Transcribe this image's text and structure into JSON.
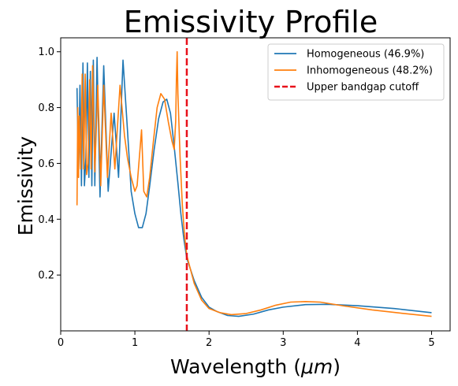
{
  "chart_data": {
    "type": "line",
    "title": "Emissivity Profile",
    "xlabel_prefix": "Wavelength (",
    "xlabel_unit": "μm",
    "xlabel_suffix": ")",
    "ylabel": "Emissivity",
    "xlim": [
      0,
      5.25
    ],
    "ylim": [
      0.0,
      1.05
    ],
    "x_ticks": [
      0,
      1,
      2,
      3,
      4,
      5
    ],
    "x_tick_labels": [
      "0",
      "1",
      "2",
      "3",
      "4",
      "5"
    ],
    "y_ticks": [
      0.2,
      0.4,
      0.6,
      0.8,
      1.0
    ],
    "y_tick_labels": [
      "0.2",
      "0.4",
      "0.6",
      "0.8",
      "1.0"
    ],
    "grid": false,
    "legend_position": "top-right",
    "series": [
      {
        "name": "Homogeneous (46.9%)",
        "color": "#1f77b4",
        "points": [
          [
            0.22,
            0.87
          ],
          [
            0.24,
            0.55
          ],
          [
            0.26,
            0.88
          ],
          [
            0.28,
            0.52
          ],
          [
            0.3,
            0.96
          ],
          [
            0.32,
            0.52
          ],
          [
            0.34,
            0.62
          ],
          [
            0.36,
            0.96
          ],
          [
            0.38,
            0.55
          ],
          [
            0.4,
            0.93
          ],
          [
            0.42,
            0.52
          ],
          [
            0.44,
            0.97
          ],
          [
            0.46,
            0.52
          ],
          [
            0.49,
            0.98
          ],
          [
            0.53,
            0.48
          ],
          [
            0.58,
            0.95
          ],
          [
            0.64,
            0.5
          ],
          [
            0.72,
            0.78
          ],
          [
            0.78,
            0.55
          ],
          [
            0.84,
            0.97
          ],
          [
            0.9,
            0.72
          ],
          [
            0.95,
            0.5
          ],
          [
            1.0,
            0.42
          ],
          [
            1.05,
            0.37
          ],
          [
            1.1,
            0.37
          ],
          [
            1.15,
            0.42
          ],
          [
            1.2,
            0.52
          ],
          [
            1.26,
            0.65
          ],
          [
            1.32,
            0.76
          ],
          [
            1.38,
            0.82
          ],
          [
            1.43,
            0.83
          ],
          [
            1.48,
            0.78
          ],
          [
            1.53,
            0.66
          ],
          [
            1.58,
            0.53
          ],
          [
            1.62,
            0.42
          ],
          [
            1.66,
            0.33
          ],
          [
            1.7,
            0.26
          ],
          [
            1.75,
            0.22
          ],
          [
            1.8,
            0.18
          ],
          [
            1.9,
            0.12
          ],
          [
            2.0,
            0.085
          ],
          [
            2.1,
            0.07
          ],
          [
            2.25,
            0.055
          ],
          [
            2.4,
            0.052
          ],
          [
            2.6,
            0.06
          ],
          [
            2.8,
            0.075
          ],
          [
            3.0,
            0.085
          ],
          [
            3.3,
            0.094
          ],
          [
            3.6,
            0.095
          ],
          [
            4.0,
            0.09
          ],
          [
            4.5,
            0.08
          ],
          [
            5.0,
            0.065
          ]
        ]
      },
      {
        "name": "Inhomogeneous (48.2%)",
        "color": "#ff7f0e",
        "points": [
          [
            0.22,
            0.45
          ],
          [
            0.23,
            0.8
          ],
          [
            0.24,
            0.55
          ],
          [
            0.25,
            0.77
          ],
          [
            0.27,
            0.58
          ],
          [
            0.29,
            0.92
          ],
          [
            0.31,
            0.58
          ],
          [
            0.33,
            0.92
          ],
          [
            0.35,
            0.56
          ],
          [
            0.37,
            0.6
          ],
          [
            0.39,
            0.9
          ],
          [
            0.41,
            0.58
          ],
          [
            0.43,
            0.95
          ],
          [
            0.46,
            0.57
          ],
          [
            0.5,
            0.88
          ],
          [
            0.54,
            0.52
          ],
          [
            0.58,
            0.88
          ],
          [
            0.63,
            0.55
          ],
          [
            0.68,
            0.78
          ],
          [
            0.73,
            0.58
          ],
          [
            0.8,
            0.88
          ],
          [
            0.86,
            0.7
          ],
          [
            0.9,
            0.62
          ],
          [
            0.95,
            0.55
          ],
          [
            1.0,
            0.5
          ],
          [
            1.03,
            0.52
          ],
          [
            1.06,
            0.62
          ],
          [
            1.09,
            0.72
          ],
          [
            1.12,
            0.5
          ],
          [
            1.16,
            0.48
          ],
          [
            1.2,
            0.55
          ],
          [
            1.25,
            0.68
          ],
          [
            1.3,
            0.8
          ],
          [
            1.35,
            0.85
          ],
          [
            1.4,
            0.83
          ],
          [
            1.45,
            0.75
          ],
          [
            1.5,
            0.68
          ],
          [
            1.53,
            0.65
          ],
          [
            1.55,
            0.75
          ],
          [
            1.56,
            0.9
          ],
          [
            1.57,
            1.0
          ],
          [
            1.58,
            0.85
          ],
          [
            1.61,
            0.62
          ],
          [
            1.64,
            0.45
          ],
          [
            1.67,
            0.34
          ],
          [
            1.7,
            0.27
          ],
          [
            1.75,
            0.22
          ],
          [
            1.8,
            0.17
          ],
          [
            1.9,
            0.11
          ],
          [
            2.0,
            0.08
          ],
          [
            2.15,
            0.065
          ],
          [
            2.3,
            0.058
          ],
          [
            2.5,
            0.062
          ],
          [
            2.7,
            0.075
          ],
          [
            2.9,
            0.092
          ],
          [
            3.1,
            0.103
          ],
          [
            3.3,
            0.105
          ],
          [
            3.5,
            0.103
          ],
          [
            3.8,
            0.09
          ],
          [
            4.2,
            0.075
          ],
          [
            4.6,
            0.063
          ],
          [
            5.0,
            0.052
          ]
        ]
      }
    ],
    "annotations": [
      {
        "type": "vline",
        "x": 1.7,
        "name": "Upper bandgap cutoff",
        "color": "#e8101a",
        "style": "dashed"
      }
    ]
  }
}
